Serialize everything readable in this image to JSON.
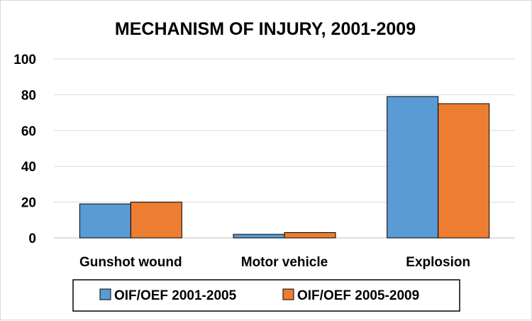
{
  "chart_data": {
    "type": "bar",
    "title": "MECHANISM OF INJURY, 2001-2009",
    "xlabel": "",
    "ylabel": "",
    "categories": [
      "Gunshot wound",
      "Motor vehicle",
      "Explosion"
    ],
    "series": [
      {
        "name": "OIF/OEF 2001-2005",
        "color": "#5b9bd5",
        "values": [
          19,
          2,
          79
        ]
      },
      {
        "name": "OIF/OEF 2005-2009",
        "color": "#ed7d31",
        "values": [
          20,
          3,
          75
        ]
      }
    ],
    "ylim": [
      0,
      100
    ],
    "yticks": [
      "0",
      "20",
      "40",
      "60",
      "80",
      "100"
    ],
    "grid": true,
    "legend_position": "bottom"
  }
}
